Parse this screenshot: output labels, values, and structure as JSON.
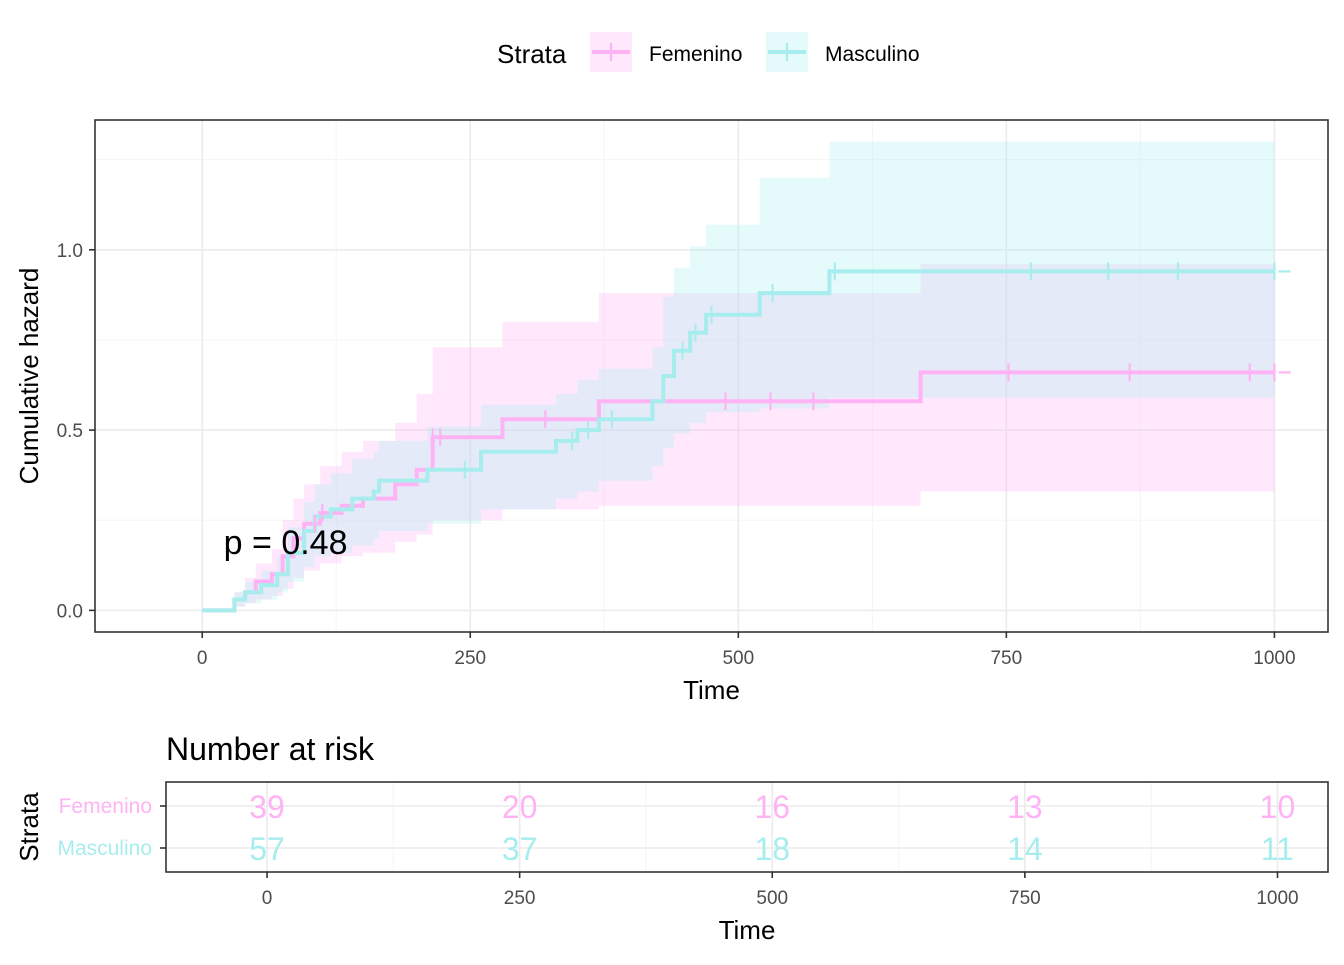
{
  "chart_data": [
    {
      "type": "line",
      "step": true,
      "ylabel": "Cumulative hazard",
      "xlabel": "Time",
      "xlim": [
        -100,
        1050
      ],
      "ylim": [
        -0.06,
        1.36
      ],
      "x_ticks": [
        0,
        250,
        500,
        750,
        1000
      ],
      "y_ticks": [
        0.0,
        0.5,
        1.0
      ],
      "x_tick_labels": [
        "0",
        "250",
        "500",
        "750",
        "1000"
      ],
      "y_tick_labels": [
        "0.0",
        "0.5",
        "1.0"
      ],
      "grid": true,
      "annotation": "p = 0.48",
      "annotation_pos": [
        20,
        0.19
      ],
      "legend": {
        "title": "Strata",
        "placement": "top",
        "entries": [
          "Femenino",
          "Masculino"
        ]
      },
      "series": [
        {
          "name": "Femenino",
          "color": "#ffb3f5",
          "steps": [
            [
              0,
              0
            ],
            [
              30,
              0.03
            ],
            [
              40,
              0.05
            ],
            [
              50,
              0.08
            ],
            [
              65,
              0.1
            ],
            [
              75,
              0.15
            ],
            [
              85,
              0.2
            ],
            [
              95,
              0.24
            ],
            [
              110,
              0.27
            ],
            [
              130,
              0.29
            ],
            [
              150,
              0.31
            ],
            [
              180,
              0.35
            ],
            [
              200,
              0.39
            ],
            [
              215,
              0.48
            ],
            [
              280,
              0.53
            ],
            [
              370,
              0.58
            ],
            [
              670,
              0.66
            ],
            [
              1000,
              0.66
            ]
          ],
          "upper": [
            [
              0,
              0
            ],
            [
              30,
              0.05
            ],
            [
              40,
              0.09
            ],
            [
              50,
              0.13
            ],
            [
              65,
              0.17
            ],
            [
              75,
              0.25
            ],
            [
              85,
              0.31
            ],
            [
              95,
              0.35
            ],
            [
              110,
              0.4
            ],
            [
              130,
              0.44
            ],
            [
              150,
              0.47
            ],
            [
              180,
              0.52
            ],
            [
              200,
              0.6
            ],
            [
              215,
              0.73
            ],
            [
              280,
              0.8
            ],
            [
              370,
              0.88
            ],
            [
              670,
              0.96
            ],
            [
              1000,
              0.96
            ]
          ],
          "lower": [
            [
              0,
              0
            ],
            [
              30,
              0.01
            ],
            [
              40,
              0.02
            ],
            [
              50,
              0.03
            ],
            [
              65,
              0.04
            ],
            [
              75,
              0.06
            ],
            [
              85,
              0.09
            ],
            [
              95,
              0.11
            ],
            [
              110,
              0.13
            ],
            [
              130,
              0.15
            ],
            [
              150,
              0.16
            ],
            [
              180,
              0.19
            ],
            [
              200,
              0.21
            ],
            [
              215,
              0.25
            ],
            [
              280,
              0.28
            ],
            [
              370,
              0.29
            ],
            [
              670,
              0.33
            ],
            [
              1000,
              0.33
            ]
          ],
          "censor_x": [
            105,
            112,
            215,
            222,
            320,
            488,
            530,
            570,
            752,
            865,
            977,
            1000
          ]
        },
        {
          "name": "Masculino",
          "color": "#a8eded",
          "steps": [
            [
              0,
              0
            ],
            [
              30,
              0.03
            ],
            [
              40,
              0.05
            ],
            [
              55,
              0.07
            ],
            [
              70,
              0.1
            ],
            [
              80,
              0.16
            ],
            [
              95,
              0.22
            ],
            [
              105,
              0.26
            ],
            [
              120,
              0.28
            ],
            [
              140,
              0.31
            ],
            [
              160,
              0.33
            ],
            [
              165,
              0.36
            ],
            [
              210,
              0.39
            ],
            [
              260,
              0.44
            ],
            [
              330,
              0.47
            ],
            [
              350,
              0.5
            ],
            [
              370,
              0.53
            ],
            [
              420,
              0.58
            ],
            [
              430,
              0.65
            ],
            [
              440,
              0.72
            ],
            [
              455,
              0.77
            ],
            [
              470,
              0.82
            ],
            [
              520,
              0.88
            ],
            [
              585,
              0.94
            ],
            [
              1000,
              0.94
            ]
          ],
          "upper": [
            [
              0,
              0
            ],
            [
              30,
              0.05
            ],
            [
              40,
              0.08
            ],
            [
              55,
              0.11
            ],
            [
              70,
              0.15
            ],
            [
              80,
              0.23
            ],
            [
              95,
              0.3
            ],
            [
              105,
              0.35
            ],
            [
              120,
              0.38
            ],
            [
              140,
              0.42
            ],
            [
              160,
              0.44
            ],
            [
              165,
              0.47
            ],
            [
              210,
              0.51
            ],
            [
              260,
              0.57
            ],
            [
              330,
              0.6
            ],
            [
              350,
              0.64
            ],
            [
              370,
              0.67
            ],
            [
              420,
              0.73
            ],
            [
              430,
              0.87
            ],
            [
              440,
              0.95
            ],
            [
              455,
              1.01
            ],
            [
              470,
              1.07
            ],
            [
              520,
              1.2
            ],
            [
              585,
              1.3
            ],
            [
              1000,
              1.3
            ]
          ],
          "lower": [
            [
              0,
              0
            ],
            [
              30,
              0.01
            ],
            [
              40,
              0.02
            ],
            [
              55,
              0.03
            ],
            [
              70,
              0.05
            ],
            [
              80,
              0.08
            ],
            [
              95,
              0.12
            ],
            [
              105,
              0.15
            ],
            [
              120,
              0.16
            ],
            [
              140,
              0.18
            ],
            [
              160,
              0.2
            ],
            [
              165,
              0.22
            ],
            [
              210,
              0.24
            ],
            [
              260,
              0.28
            ],
            [
              330,
              0.31
            ],
            [
              350,
              0.33
            ],
            [
              370,
              0.36
            ],
            [
              420,
              0.4
            ],
            [
              430,
              0.45
            ],
            [
              440,
              0.49
            ],
            [
              455,
              0.52
            ],
            [
              470,
              0.55
            ],
            [
              520,
              0.56
            ],
            [
              585,
              0.59
            ],
            [
              1000,
              0.59
            ]
          ],
          "censor_x": [
            245,
            345,
            360,
            382,
            448,
            460,
            475,
            532,
            590,
            773,
            845,
            910,
            1000
          ]
        }
      ]
    },
    {
      "type": "table",
      "title": "Number at risk",
      "xlabel": "Time",
      "ylabel": "Strata",
      "xlim": [
        -100,
        1050
      ],
      "x_ticks": [
        0,
        250,
        500,
        750,
        1000
      ],
      "x_tick_labels": [
        "0",
        "250",
        "500",
        "750",
        "1000"
      ],
      "rows": [
        {
          "name": "Femenino",
          "color": "#ffb3f5",
          "values": [
            "39",
            "20",
            "16",
            "13",
            "10"
          ]
        },
        {
          "name": "Masculino",
          "color": "#a8eded",
          "values": [
            "57",
            "37",
            "18",
            "14",
            "11"
          ]
        }
      ]
    }
  ]
}
